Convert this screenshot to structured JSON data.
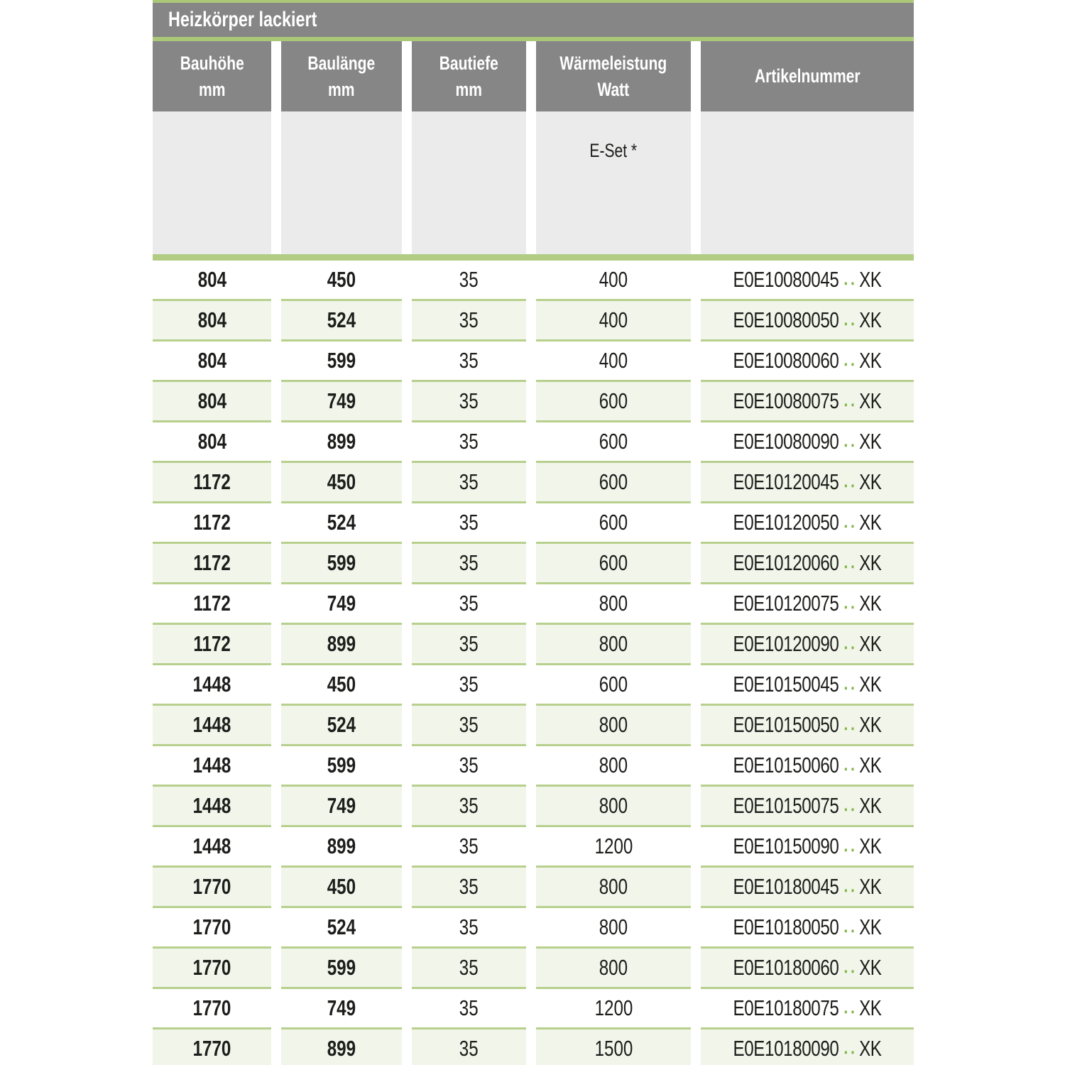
{
  "title": "Heizkörper lackiert",
  "columns": [
    {
      "line1": "Bauhöhe",
      "line2": "mm"
    },
    {
      "line1": "Baulänge",
      "line2": "mm"
    },
    {
      "line1": "Bautiefe",
      "line2": "mm"
    },
    {
      "line1": "Wärmeleistung",
      "line2": "Watt"
    },
    {
      "line1": "Artikelnummer",
      "line2": ""
    }
  ],
  "subheader": {
    "eset_label": "E-Set *"
  },
  "artikel_dots": "▪▪",
  "rows": [
    {
      "hoehe": "804",
      "laenge": "450",
      "tiefe": "35",
      "watt": "400",
      "artikel": "E0E10080045",
      "artikel_suffix": "XK"
    },
    {
      "hoehe": "804",
      "laenge": "524",
      "tiefe": "35",
      "watt": "400",
      "artikel": "E0E10080050",
      "artikel_suffix": "XK"
    },
    {
      "hoehe": "804",
      "laenge": "599",
      "tiefe": "35",
      "watt": "400",
      "artikel": "E0E10080060",
      "artikel_suffix": "XK"
    },
    {
      "hoehe": "804",
      "laenge": "749",
      "tiefe": "35",
      "watt": "600",
      "artikel": "E0E10080075",
      "artikel_suffix": "XK"
    },
    {
      "hoehe": "804",
      "laenge": "899",
      "tiefe": "35",
      "watt": "600",
      "artikel": "E0E10080090",
      "artikel_suffix": "XK"
    },
    {
      "hoehe": "1172",
      "laenge": "450",
      "tiefe": "35",
      "watt": "600",
      "artikel": "E0E10120045",
      "artikel_suffix": "XK"
    },
    {
      "hoehe": "1172",
      "laenge": "524",
      "tiefe": "35",
      "watt": "600",
      "artikel": "E0E10120050",
      "artikel_suffix": "XK"
    },
    {
      "hoehe": "1172",
      "laenge": "599",
      "tiefe": "35",
      "watt": "600",
      "artikel": "E0E10120060",
      "artikel_suffix": "XK"
    },
    {
      "hoehe": "1172",
      "laenge": "749",
      "tiefe": "35",
      "watt": "800",
      "artikel": "E0E10120075",
      "artikel_suffix": "XK"
    },
    {
      "hoehe": "1172",
      "laenge": "899",
      "tiefe": "35",
      "watt": "800",
      "artikel": "E0E10120090",
      "artikel_suffix": "XK"
    },
    {
      "hoehe": "1448",
      "laenge": "450",
      "tiefe": "35",
      "watt": "600",
      "artikel": "E0E10150045",
      "artikel_suffix": "XK"
    },
    {
      "hoehe": "1448",
      "laenge": "524",
      "tiefe": "35",
      "watt": "800",
      "artikel": "E0E10150050",
      "artikel_suffix": "XK"
    },
    {
      "hoehe": "1448",
      "laenge": "599",
      "tiefe": "35",
      "watt": "800",
      "artikel": "E0E10150060",
      "artikel_suffix": "XK"
    },
    {
      "hoehe": "1448",
      "laenge": "749",
      "tiefe": "35",
      "watt": "800",
      "artikel": "E0E10150075",
      "artikel_suffix": "XK"
    },
    {
      "hoehe": "1448",
      "laenge": "899",
      "tiefe": "35",
      "watt": "1200",
      "artikel": "E0E10150090",
      "artikel_suffix": "XK"
    },
    {
      "hoehe": "1770",
      "laenge": "450",
      "tiefe": "35",
      "watt": "800",
      "artikel": "E0E10180045",
      "artikel_suffix": "XK"
    },
    {
      "hoehe": "1770",
      "laenge": "524",
      "tiefe": "35",
      "watt": "800",
      "artikel": "E0E10180050",
      "artikel_suffix": "XK"
    },
    {
      "hoehe": "1770",
      "laenge": "599",
      "tiefe": "35",
      "watt": "800",
      "artikel": "E0E10180060",
      "artikel_suffix": "XK"
    },
    {
      "hoehe": "1770",
      "laenge": "749",
      "tiefe": "35",
      "watt": "1200",
      "artikel": "E0E10180075",
      "artikel_suffix": "XK"
    },
    {
      "hoehe": "1770",
      "laenge": "899",
      "tiefe": "35",
      "watt": "1500",
      "artikel": "E0E10180090",
      "artikel_suffix": "XK"
    }
  ],
  "colors": {
    "header_gray": "#868686",
    "accent_green": "#abc879",
    "separator_green": "#b7d08d",
    "thick_separator_green": "#b2cc83",
    "row_alt_background": "#f1f5ea",
    "subheader_gray": "#ebebeb",
    "dots_green": "#7db23e",
    "text_black": "#1d1d1b",
    "header_text_white": "#ffffff"
  }
}
